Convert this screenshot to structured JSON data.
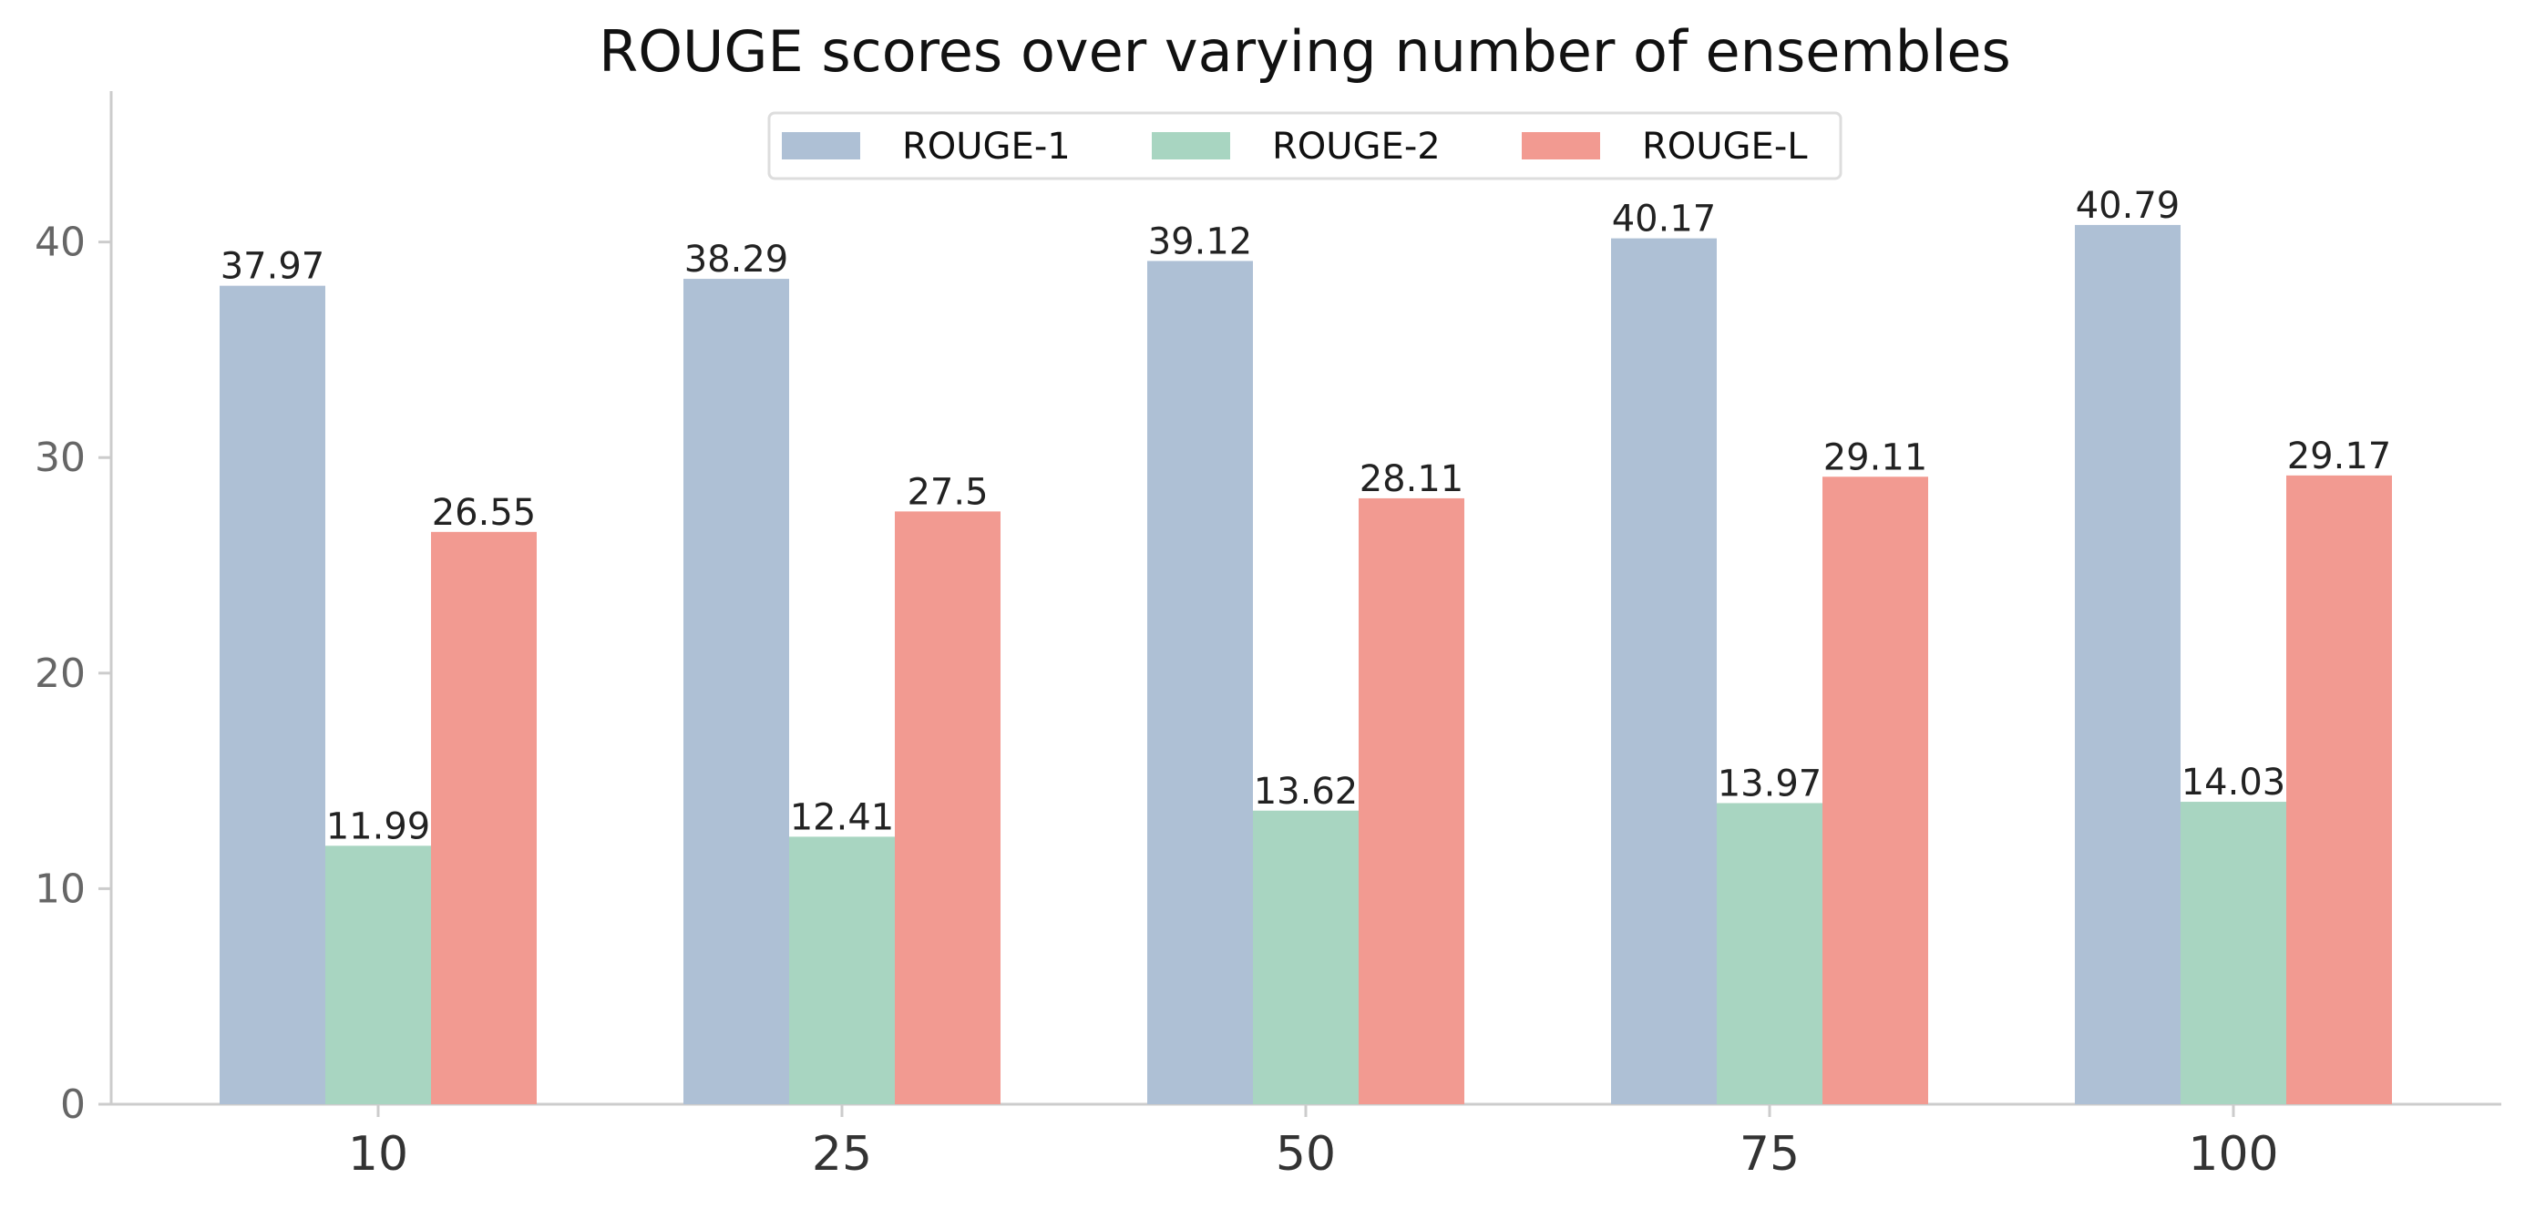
{
  "chart_data": {
    "type": "bar",
    "title": "ROUGE scores over varying number of ensembles",
    "xlabel": "",
    "ylabel": "",
    "categories": [
      "10",
      "25",
      "50",
      "75",
      "100"
    ],
    "series": [
      {
        "name": "ROUGE-1",
        "color": "#aec0d5",
        "values": [
          37.97,
          38.29,
          39.12,
          40.17,
          40.79
        ],
        "labels": [
          "37.97",
          "38.29",
          "39.12",
          "40.17",
          "40.79"
        ]
      },
      {
        "name": "ROUGE-2",
        "color": "#a8d5c1",
        "values": [
          11.99,
          12.41,
          13.62,
          13.97,
          14.03
        ],
        "labels": [
          "11.99",
          "12.41",
          "13.62",
          "13.97",
          "14.03"
        ]
      },
      {
        "name": "ROUGE-L",
        "color": "#f29a91",
        "values": [
          26.55,
          27.5,
          28.11,
          29.11,
          29.17
        ],
        "labels": [
          "26.55",
          "27.5",
          "28.11",
          "29.11",
          "29.17"
        ]
      }
    ],
    "yticks": [
      "0",
      "10",
      "20",
      "30",
      "40"
    ],
    "ylim": [
      0,
      47
    ],
    "grid": false,
    "legend_position": "top-center"
  }
}
